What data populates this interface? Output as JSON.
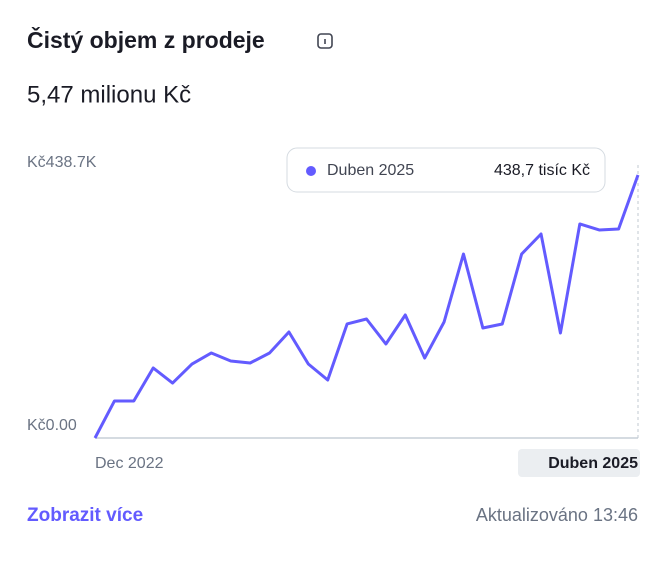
{
  "title": "Čistý objem z prodeje",
  "summary": "5,47 milionu Kč",
  "chart_data": {
    "type": "line",
    "color": "#635bff",
    "categories": [
      "Dec 2022",
      null,
      null,
      null,
      null,
      null,
      null,
      null,
      null,
      null,
      null,
      null,
      null,
      null,
      null,
      null,
      null,
      null,
      null,
      null,
      null,
      null,
      null,
      null,
      null,
      null,
      null,
      null,
      "Duben 2025"
    ],
    "values": [
      0,
      61.7,
      61.7,
      116.8,
      91.7,
      123.4,
      141.8,
      128.4,
      125.1,
      141.8,
      176.8,
      123.4,
      96.7,
      190.2,
      198.5,
      156.8,
      205.2,
      133.4,
      193.5,
      306.9,
      183.5,
      190.2,
      306.9,
      340.3,
      175.1,
      357.0,
      347.0,
      348.6,
      438.7
    ],
    "value_labels": [
      null,
      null,
      null,
      null,
      null,
      null,
      null,
      null,
      null,
      null,
      null,
      null,
      null,
      null,
      null,
      null,
      null,
      null,
      null,
      null,
      null,
      null,
      null,
      null,
      null,
      null,
      null,
      null,
      "438,7 tisíc Kč"
    ],
    "ylim": [
      0,
      438.7
    ],
    "yticks": [
      {
        "value": 0,
        "label": "Kč0.00"
      },
      {
        "value": 438.7,
        "label": "Kč438.7K"
      }
    ]
  },
  "footer": {
    "link": "Zobrazit více",
    "updated": "Aktualizováno 13:46"
  }
}
